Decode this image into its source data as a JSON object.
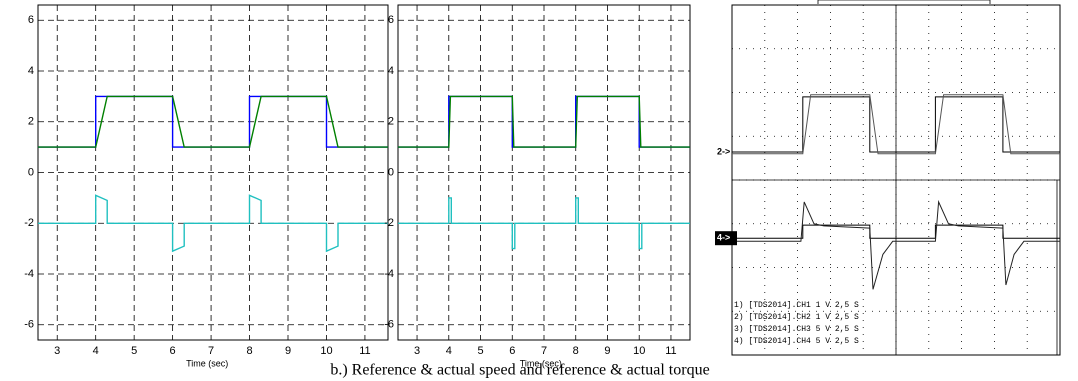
{
  "caption": "b.) Reference & actual speed and reference & actual torque",
  "chart_data": [
    {
      "type": "line",
      "xlabel": "Time (sec)",
      "xlim": [
        2.5,
        11.6
      ],
      "ylim": [
        -6.6,
        6.6
      ],
      "xticks": [
        3,
        4,
        5,
        6,
        7,
        8,
        9,
        10,
        11
      ],
      "yticks": [
        -6,
        -4,
        -2,
        0,
        2,
        4,
        6
      ],
      "grid": true,
      "series": [
        {
          "color": "#0000ff",
          "x": [
            2.5,
            4,
            4,
            6,
            6,
            8,
            8,
            10,
            10,
            11.6
          ],
          "values": [
            1,
            1,
            3,
            3,
            1,
            1,
            3,
            3,
            1,
            1
          ]
        },
        {
          "color": "#008000",
          "x": [
            2.5,
            4,
            4.3,
            6,
            6.3,
            8,
            8.3,
            10,
            10.3,
            11.6
          ],
          "values": [
            1,
            1,
            3,
            3,
            1,
            1,
            3,
            3,
            1,
            1
          ]
        },
        {
          "color": "#20c0c0",
          "x": [
            2.5,
            4,
            4,
            4.3,
            4.3,
            6,
            6,
            6.3,
            6.3,
            8,
            8,
            8.3,
            8.3,
            10,
            10,
            10.3,
            10.3,
            11.6
          ],
          "values": [
            -2,
            -2,
            -0.9,
            -1.1,
            -2,
            -2,
            -3.1,
            -2.9,
            -2,
            -2,
            -0.9,
            -1.1,
            -2,
            -2,
            -3.1,
            -2.9,
            -2,
            -2
          ]
        }
      ]
    },
    {
      "type": "line",
      "xlabel": "Time (sec)",
      "xlim": [
        2.4,
        11.6
      ],
      "ylim": [
        -6.6,
        6.6
      ],
      "xticks": [
        3,
        4,
        5,
        6,
        7,
        8,
        9,
        10,
        11
      ],
      "yticks": [
        -6,
        -4,
        -2,
        0,
        2,
        4,
        6
      ],
      "grid": true,
      "series": [
        {
          "color": "#0000ff",
          "x": [
            2.4,
            4,
            4,
            6,
            6,
            8,
            8,
            10,
            10,
            11.6
          ],
          "values": [
            1,
            1,
            3,
            3,
            1,
            1,
            3,
            3,
            1,
            1
          ]
        },
        {
          "color": "#008000",
          "x": [
            2.4,
            4,
            4.05,
            6,
            6.05,
            8,
            8.05,
            10,
            10.05,
            11.6
          ],
          "values": [
            1,
            1,
            3,
            3,
            1,
            1,
            3,
            3,
            1,
            1
          ]
        },
        {
          "color": "#20c0c0",
          "x": [
            2.4,
            4,
            4,
            4.08,
            4.08,
            6,
            6,
            6.08,
            6.08,
            8,
            8,
            8.08,
            8.08,
            10,
            10,
            10.08,
            10.08,
            11.6
          ],
          "values": [
            -2,
            -2,
            -1,
            -1,
            -2,
            -2,
            -3,
            -3,
            -2,
            -2,
            -1,
            -1,
            -2,
            -2,
            -3,
            -3,
            -2,
            -2
          ]
        }
      ]
    },
    {
      "type": "scope",
      "xlim": [
        0,
        10
      ],
      "ylim": [
        0,
        8
      ],
      "grid": true,
      "markers": [
        {
          "label": "2->",
          "value": 4.64
        },
        {
          "label": "4->",
          "value": 2.67
        }
      ],
      "legend_lines": [
        "1) [TDS2014].CH1  1  V   2,5  S",
        "2) [TDS2014].CH2  1  V   2,5  S",
        "3) [TDS2014].CH3  5  V   2,5  S",
        "4) [TDS2014].CH4  5  V   2,5  S"
      ],
      "series": [
        {
          "color": "#000000",
          "x": [
            0,
            2.16,
            2.16,
            4.2,
            4.2,
            6.2,
            6.2,
            8.26,
            8.26,
            10
          ],
          "values": [
            4.64,
            4.64,
            5.9,
            5.9,
            4.64,
            4.64,
            5.9,
            5.9,
            4.64,
            4.64
          ]
        },
        {
          "color": "#555555",
          "x": [
            0,
            2.16,
            2.4,
            4.2,
            4.45,
            6.2,
            6.45,
            8.26,
            8.5,
            10
          ],
          "values": [
            4.6,
            4.6,
            5.95,
            5.95,
            4.6,
            4.6,
            5.95,
            5.95,
            4.6,
            4.6
          ]
        },
        {
          "color": "#000000",
          "x": [
            0,
            2.16,
            2.16,
            4.2,
            4.2,
            6.2,
            6.2,
            8.26,
            8.26,
            10
          ],
          "values": [
            2.67,
            2.67,
            2.97,
            2.97,
            2.67,
            2.67,
            2.97,
            2.97,
            2.67,
            2.67
          ]
        },
        {
          "color": "#222222",
          "x": [
            0,
            2.1,
            2.2,
            2.5,
            2.8,
            4.2,
            4.3,
            4.6,
            4.9,
            6.2,
            6.3,
            6.6,
            6.9,
            8.26,
            8.35,
            8.6,
            8.9,
            10
          ],
          "values": [
            2.6,
            2.6,
            3.5,
            3.0,
            2.95,
            2.9,
            1.5,
            2.3,
            2.6,
            2.6,
            3.5,
            3.0,
            2.95,
            2.9,
            1.6,
            2.3,
            2.6,
            2.6
          ]
        }
      ]
    }
  ]
}
